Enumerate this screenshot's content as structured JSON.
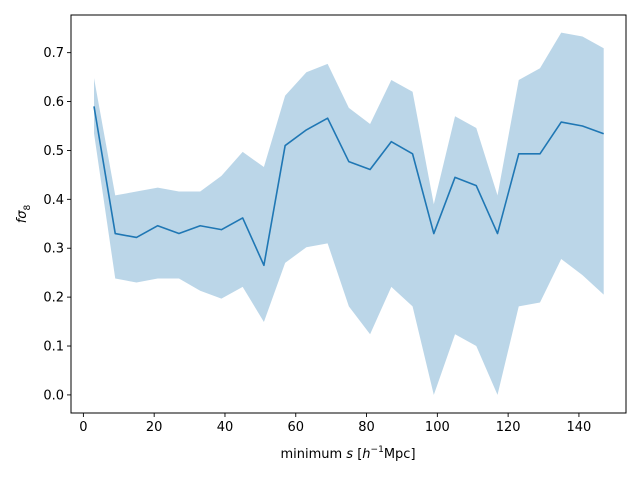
{
  "chart_data": {
    "type": "line",
    "title": "",
    "xlabel_prefix": "minimum ",
    "xlabel_var": "s",
    "xlabel_unit_open": " [",
    "xlabel_unit_h": "h",
    "xlabel_unit_exp": "−1",
    "xlabel_unit_rest": "Mpc]",
    "ylabel_f": "f",
    "ylabel_sigma": "σ",
    "ylabel_sub": "8",
    "xlim": [
      -3.5,
      153.3
    ],
    "ylim": [
      -0.037,
      0.777
    ],
    "xticks": [
      0,
      20,
      40,
      60,
      80,
      100,
      120,
      140
    ],
    "yticks": [
      0.0,
      0.1,
      0.2,
      0.3,
      0.4,
      0.5,
      0.6,
      0.7
    ],
    "ytick_labels": [
      "0.0",
      "0.1",
      "0.2",
      "0.3",
      "0.4",
      "0.5",
      "0.6",
      "0.7"
    ],
    "line_color": "#1f77b4",
    "band_color": "#1f77b4",
    "band_alpha": 0.3,
    "series": [
      {
        "x": [
          3,
          9,
          15,
          21,
          27,
          33,
          39,
          45,
          51,
          57,
          63,
          69,
          75,
          81,
          87,
          93,
          99,
          105,
          111,
          117,
          123,
          129,
          135,
          141,
          147
        ],
        "y": [
          0.59,
          0.33,
          0.322,
          0.346,
          0.33,
          0.346,
          0.338,
          0.362,
          0.265,
          0.51,
          0.542,
          0.566,
          0.477,
          0.461,
          0.518,
          0.493,
          0.33,
          0.445,
          0.428,
          0.33,
          0.493,
          0.493,
          0.558,
          0.55,
          0.534
        ],
        "y_lower": [
          0.535,
          0.238,
          0.23,
          0.238,
          0.238,
          0.213,
          0.197,
          0.221,
          0.149,
          0.27,
          0.302,
          0.31,
          0.181,
          0.124,
          0.221,
          0.181,
          0.0,
          0.124,
          0.1,
          0.0,
          0.181,
          0.189,
          0.278,
          0.245,
          0.205
        ],
        "y_upper": [
          0.648,
          0.408,
          0.416,
          0.424,
          0.416,
          0.416,
          0.448,
          0.497,
          0.466,
          0.612,
          0.66,
          0.677,
          0.587,
          0.554,
          0.644,
          0.62,
          0.39,
          0.57,
          0.546,
          0.408,
          0.644,
          0.668,
          0.741,
          0.733,
          0.709
        ]
      }
    ]
  }
}
